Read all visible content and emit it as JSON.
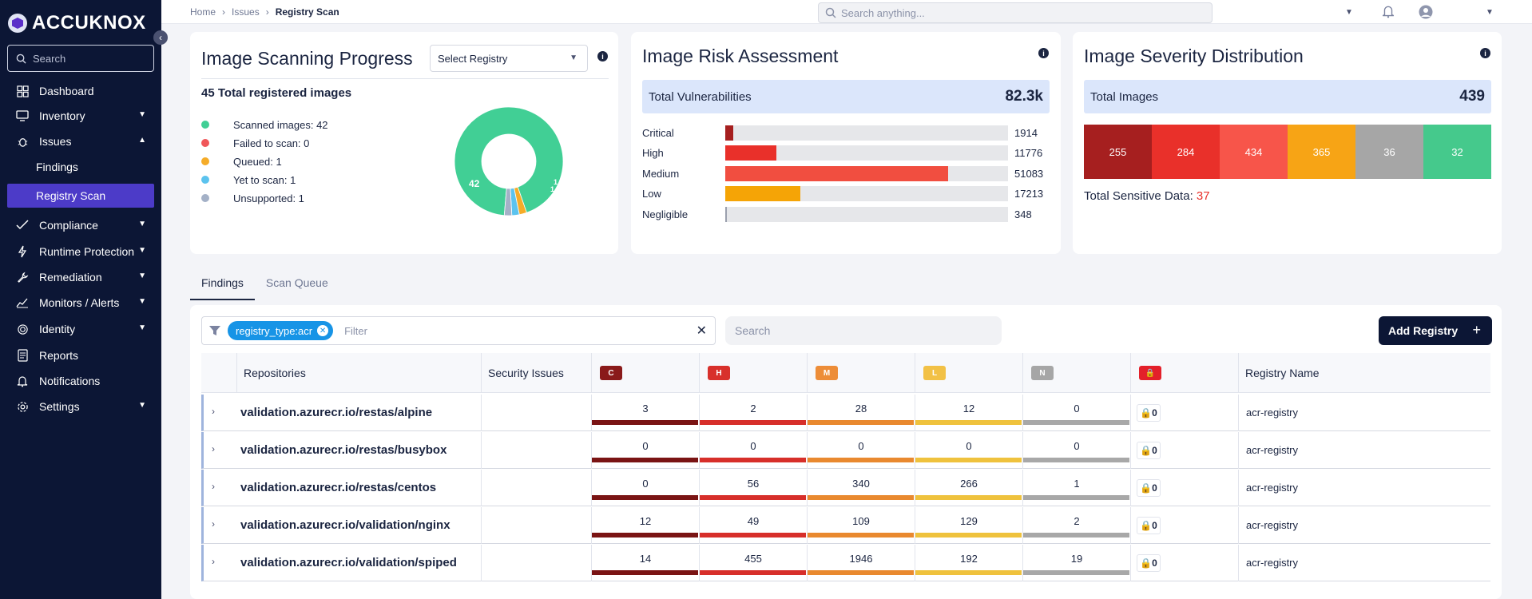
{
  "app": {
    "logo_text": "ACCUKNOX"
  },
  "sidebar": {
    "search_placeholder": "Search",
    "items": [
      {
        "label": "Dashboard"
      },
      {
        "label": "Inventory"
      },
      {
        "label": "Issues"
      },
      {
        "label": "Findings"
      },
      {
        "label": "Registry Scan"
      },
      {
        "label": "Compliance"
      },
      {
        "label": "Runtime Protection"
      },
      {
        "label": "Remediation"
      },
      {
        "label": "Monitors / Alerts"
      },
      {
        "label": "Identity"
      },
      {
        "label": "Reports"
      },
      {
        "label": "Notifications"
      },
      {
        "label": "Settings"
      }
    ]
  },
  "breadcrumb": [
    "Home",
    "Issues",
    "Registry Scan"
  ],
  "top_search_placeholder": "Search anything...",
  "progress": {
    "title": "Image Scanning Progress",
    "select_label": "Select Registry",
    "total_text": "45 Total registered images",
    "legend": [
      {
        "label": "Scanned images: 42",
        "color": "#41cf95"
      },
      {
        "label": "Failed to scan: 0",
        "color": "#f0575a"
      },
      {
        "label": "Queued: 1",
        "color": "#f5ac29"
      },
      {
        "label": "Yet to scan: 1",
        "color": "#5cc3ee"
      },
      {
        "label": "Unsupported: 1",
        "color": "#a4b1c7"
      }
    ],
    "donut_values": [
      42,
      0,
      1,
      1,
      1
    ],
    "donut_labels": {
      "scanned": "42",
      "queued": "1",
      "yet": "1"
    }
  },
  "risk": {
    "title": "Image Risk Assessment",
    "total_label": "Total Vulnerabilities",
    "total_value": "82.3k",
    "max": 82334,
    "rows": [
      {
        "label": "Critical",
        "value": 1914,
        "text": "1914",
        "color": "#a61f1f"
      },
      {
        "label": "High",
        "value": 11776,
        "text": "11776",
        "color": "#e9302a"
      },
      {
        "label": "Medium",
        "value": 51083,
        "text": "51083",
        "color": "#f14e40"
      },
      {
        "label": "Low",
        "value": 17213,
        "text": "17213",
        "color": "#f5a406"
      },
      {
        "label": "Negligible",
        "value": 348,
        "text": "348",
        "color": "#9aa0ad"
      }
    ]
  },
  "severity": {
    "title": "Image Severity Distribution",
    "total_label": "Total Images",
    "total_value": "439",
    "cells": [
      {
        "text": "255",
        "color": "#a61f1f"
      },
      {
        "text": "284",
        "color": "#e9302a"
      },
      {
        "text": "434",
        "color": "#f7554a"
      },
      {
        "text": "365",
        "color": "#f7a415"
      },
      {
        "text": "36",
        "color": "#a6a6a6"
      },
      {
        "text": "32",
        "color": "#45c98c"
      }
    ],
    "sensitive_label": "Total Sensitive Data:",
    "sensitive_value": "37"
  },
  "tabs": [
    "Findings",
    "Scan Queue"
  ],
  "filter": {
    "chip": "registry_type:acr",
    "placeholder": "Filter"
  },
  "table_search_placeholder": "Search",
  "add_registry": "Add Registry",
  "table": {
    "headers": {
      "repositories": "Repositories",
      "security": "Security Issues",
      "registry": "Registry Name"
    },
    "sev_badges": [
      {
        "text": "C",
        "color": "#8a1a1a"
      },
      {
        "text": "H",
        "color": "#d8302b"
      },
      {
        "text": "M",
        "color": "#ed8d38"
      },
      {
        "text": "L",
        "color": "#f2c146"
      },
      {
        "text": "N",
        "color": "#a6a6a6"
      }
    ],
    "bar_colors": [
      "#7a1414",
      "#d72f2a",
      "#e9892f",
      "#efc23d",
      "#a8a8a8"
    ],
    "rows": [
      {
        "repo": "validation.azurecr.io/restas/alpine",
        "c": "3",
        "h": "2",
        "m": "28",
        "l": "12",
        "n": "0",
        "secrets": "0",
        "registry": "acr-registry"
      },
      {
        "repo": "validation.azurecr.io/restas/busybox",
        "c": "0",
        "h": "0",
        "m": "0",
        "l": "0",
        "n": "0",
        "secrets": "0",
        "registry": "acr-registry"
      },
      {
        "repo": "validation.azurecr.io/restas/centos",
        "c": "0",
        "h": "56",
        "m": "340",
        "l": "266",
        "n": "1",
        "secrets": "0",
        "registry": "acr-registry"
      },
      {
        "repo": "validation.azurecr.io/validation/nginx",
        "c": "12",
        "h": "49",
        "m": "109",
        "l": "129",
        "n": "2",
        "secrets": "0",
        "registry": "acr-registry"
      },
      {
        "repo": "validation.azurecr.io/validation/spiped",
        "c": "14",
        "h": "455",
        "m": "1946",
        "l": "192",
        "n": "19",
        "secrets": "0",
        "registry": "acr-registry"
      }
    ]
  }
}
